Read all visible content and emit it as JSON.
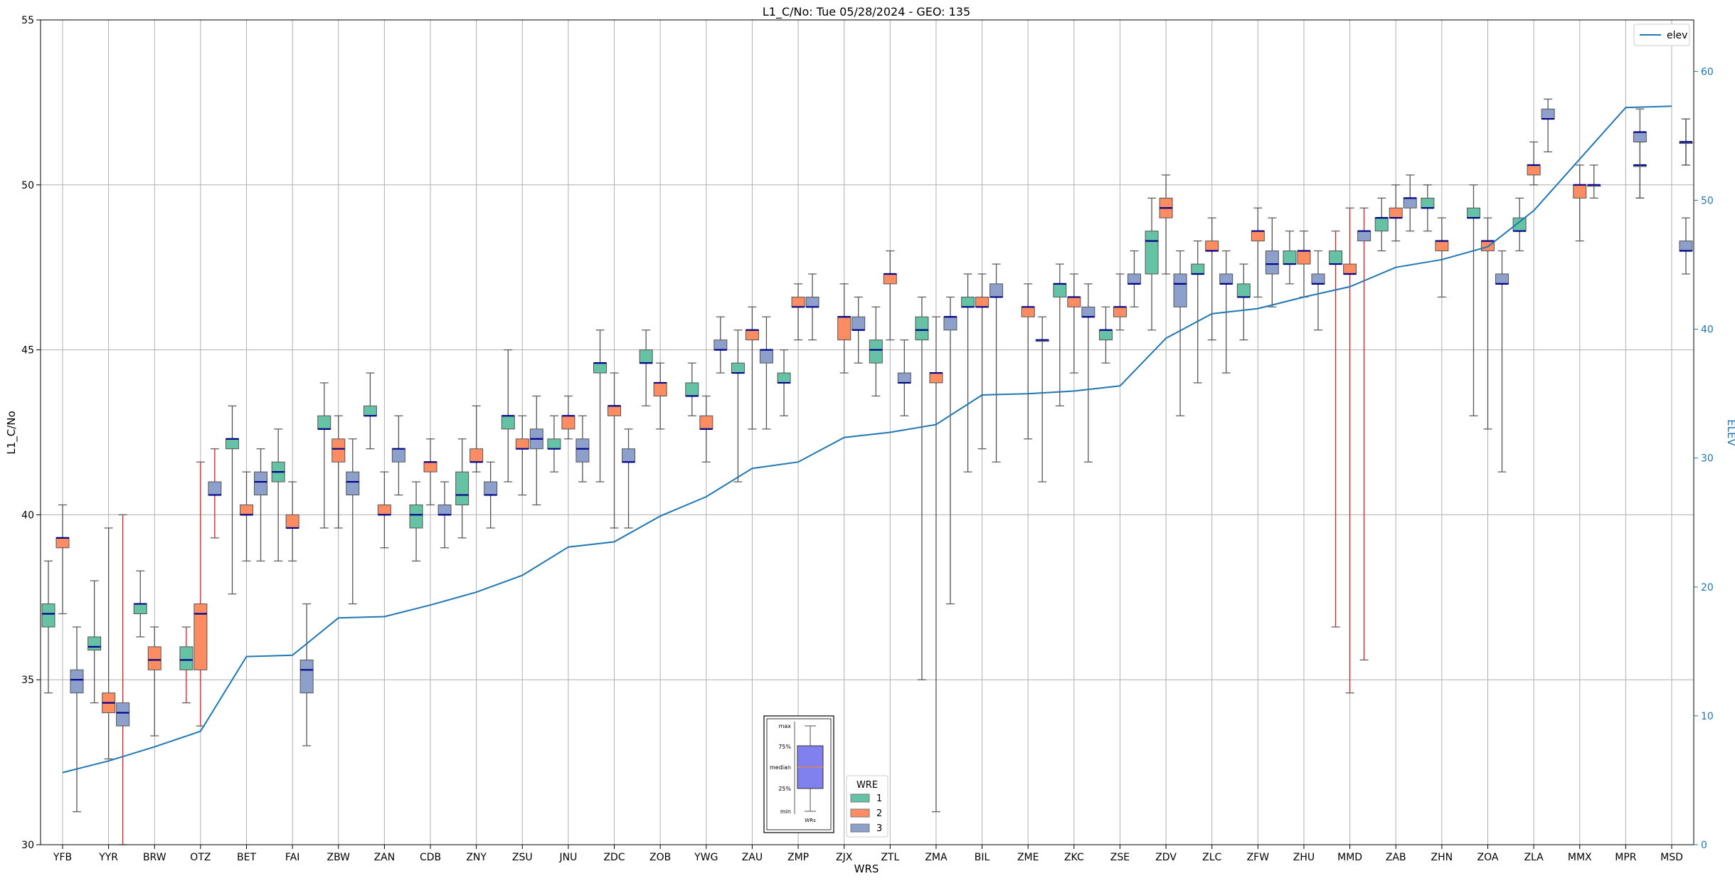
{
  "chart_data": {
    "type": "boxplot",
    "title": "L1_C/No: Tue 05/28/2024 - GEO: 135",
    "xlabel": "WRS",
    "ylabel": "L1_C/No",
    "y2label": "ELEV",
    "ylim": [
      30,
      55
    ],
    "y2lim": [
      0,
      64
    ],
    "yticks": [
      30,
      35,
      40,
      45,
      50,
      55
    ],
    "y2ticks": [
      0,
      10,
      20,
      30,
      40,
      50,
      60
    ],
    "grid": true,
    "categories": [
      "YFB",
      "YYR",
      "BRW",
      "OTZ",
      "BET",
      "FAI",
      "ZBW",
      "ZAN",
      "CDB",
      "ZNY",
      "ZSU",
      "JNU",
      "ZDC",
      "ZOB",
      "YWG",
      "ZAU",
      "ZMP",
      "ZJX",
      "ZTL",
      "ZMA",
      "BIL",
      "ZME",
      "ZKC",
      "ZSE",
      "ZDV",
      "ZLC",
      "ZFW",
      "ZHU",
      "MMD",
      "ZAB",
      "ZHN",
      "ZOA",
      "ZLA",
      "MMX",
      "MPR",
      "MSD"
    ],
    "elev": [
      5.6,
      6.5,
      7.6,
      8.8,
      14.6,
      14.7,
      17.6,
      17.7,
      18.6,
      19.6,
      20.9,
      23.1,
      23.5,
      25.5,
      27.0,
      29.2,
      29.7,
      31.6,
      32.0,
      32.6,
      34.9,
      35.0,
      35.2,
      35.6,
      39.3,
      41.2,
      41.6,
      42.5,
      43.3,
      44.8,
      45.4,
      46.4,
      49.2,
      53.2,
      57.2,
      57.3
    ],
    "elev_legend": "elev",
    "colors": {
      "1": "#66c2a5",
      "2": "#fc8d62",
      "3": "#8da0cb",
      "elev": "#1f77b4",
      "outlier_whisker": "#e41a1c",
      "median": "#00008b"
    },
    "wre_legend": {
      "title": "WRE",
      "labels": [
        "1",
        "2",
        "3"
      ]
    },
    "series": [
      {
        "name": "1",
        "boxes": [
          [
            0,
            34.6,
            36.6,
            37.0,
            37.3,
            38.6,
            false
          ],
          [
            1,
            34.3,
            35.9,
            36.0,
            36.3,
            38.0,
            false
          ],
          [
            2,
            36.3,
            37.0,
            37.3,
            37.3,
            38.3,
            false
          ],
          [
            3,
            34.3,
            35.3,
            35.6,
            36.0,
            36.6,
            true
          ],
          [
            4,
            37.6,
            42.0,
            42.3,
            42.3,
            43.3,
            false
          ],
          [
            5,
            38.6,
            41.0,
            41.3,
            41.6,
            42.6,
            false
          ],
          [
            6,
            39.6,
            42.6,
            42.6,
            43.0,
            44.0,
            false
          ],
          [
            7,
            42.0,
            43.0,
            43.0,
            43.3,
            44.3,
            false
          ],
          [
            8,
            38.6,
            39.6,
            40.0,
            40.3,
            41.0,
            false
          ],
          [
            9,
            39.3,
            40.3,
            40.6,
            41.3,
            42.3,
            false
          ],
          [
            10,
            41.0,
            42.6,
            43.0,
            43.0,
            45.0,
            false
          ],
          [
            11,
            41.3,
            42.0,
            42.0,
            42.3,
            43.0,
            false
          ],
          [
            12,
            41.0,
            44.3,
            44.6,
            44.6,
            45.6,
            false
          ],
          [
            13,
            43.3,
            44.6,
            44.6,
            45.0,
            45.6,
            false
          ],
          [
            14,
            43.0,
            43.6,
            43.6,
            44.0,
            44.6,
            false
          ],
          [
            15,
            41.0,
            44.3,
            44.3,
            44.6,
            45.6,
            false
          ],
          [
            16,
            43.0,
            44.0,
            44.0,
            44.3,
            45.0,
            false
          ],
          [
            18,
            43.6,
            44.6,
            45.0,
            45.3,
            46.3,
            false
          ],
          [
            19,
            35.0,
            45.3,
            45.6,
            46.0,
            46.6,
            false
          ],
          [
            20,
            41.3,
            46.3,
            46.3,
            46.6,
            47.3,
            false
          ],
          [
            22,
            43.3,
            46.6,
            47.0,
            47.0,
            47.6,
            false
          ],
          [
            23,
            44.6,
            45.3,
            45.6,
            45.6,
            46.3,
            false
          ],
          [
            24,
            45.6,
            47.3,
            48.3,
            48.6,
            49.6,
            false
          ],
          [
            25,
            44.0,
            47.3,
            47.3,
            47.6,
            48.3,
            false
          ],
          [
            26,
            45.3,
            46.6,
            46.6,
            47.0,
            47.6,
            false
          ],
          [
            27,
            47.0,
            47.6,
            47.6,
            48.0,
            48.6,
            false
          ],
          [
            28,
            36.6,
            47.6,
            47.6,
            48.0,
            48.6,
            true
          ],
          [
            29,
            48.0,
            48.6,
            49.0,
            49.0,
            49.6,
            false
          ],
          [
            30,
            48.6,
            49.3,
            49.3,
            49.6,
            50.0,
            false
          ],
          [
            31,
            43.0,
            49.0,
            49.0,
            49.3,
            50.0,
            false
          ],
          [
            32,
            48.0,
            48.6,
            48.6,
            49.0,
            49.6,
            false
          ]
        ]
      },
      {
        "name": "2",
        "boxes": [
          [
            0,
            37.0,
            39.0,
            39.3,
            39.3,
            40.3,
            false
          ],
          [
            1,
            32.6,
            34.0,
            34.3,
            34.6,
            39.6,
            false
          ],
          [
            2,
            33.3,
            35.3,
            35.6,
            36.0,
            36.6,
            false
          ],
          [
            3,
            33.6,
            35.3,
            37.0,
            37.3,
            41.6,
            true
          ],
          [
            4,
            38.6,
            40.0,
            40.0,
            40.3,
            41.3,
            false
          ],
          [
            5,
            38.6,
            39.6,
            39.6,
            40.0,
            41.0,
            false
          ],
          [
            6,
            39.6,
            41.6,
            42.0,
            42.3,
            43.0,
            false
          ],
          [
            7,
            39.0,
            40.0,
            40.0,
            40.3,
            41.3,
            false
          ],
          [
            8,
            40.3,
            41.3,
            41.6,
            41.6,
            42.3,
            false
          ],
          [
            9,
            41.3,
            41.6,
            41.6,
            42.0,
            43.3,
            false
          ],
          [
            10,
            40.6,
            42.0,
            42.0,
            42.3,
            43.0,
            false
          ],
          [
            11,
            42.3,
            42.6,
            43.0,
            43.0,
            43.6,
            false
          ],
          [
            12,
            39.6,
            43.0,
            43.3,
            43.3,
            44.3,
            false
          ],
          [
            13,
            42.6,
            43.6,
            44.0,
            44.0,
            44.6,
            false
          ],
          [
            14,
            41.6,
            42.6,
            42.6,
            43.0,
            43.6,
            false
          ],
          [
            15,
            42.6,
            45.3,
            45.6,
            45.6,
            46.3,
            false
          ],
          [
            16,
            45.3,
            46.3,
            46.3,
            46.6,
            47.0,
            false
          ],
          [
            17,
            44.3,
            45.3,
            46.0,
            46.0,
            47.0,
            false
          ],
          [
            18,
            45.3,
            47.0,
            47.3,
            47.3,
            48.0,
            false
          ],
          [
            19,
            31.0,
            44.0,
            44.3,
            44.3,
            46.0,
            false
          ],
          [
            20,
            42.0,
            46.3,
            46.3,
            46.6,
            47.3,
            false
          ],
          [
            21,
            42.3,
            46.0,
            46.3,
            46.3,
            47.0,
            false
          ],
          [
            22,
            44.3,
            46.3,
            46.6,
            46.6,
            47.3,
            false
          ],
          [
            23,
            45.6,
            46.0,
            46.3,
            46.3,
            47.3,
            false
          ],
          [
            24,
            47.3,
            49.0,
            49.3,
            49.6,
            50.3,
            false
          ],
          [
            25,
            45.3,
            48.0,
            48.0,
            48.3,
            49.0,
            false
          ],
          [
            26,
            46.6,
            48.3,
            48.6,
            48.6,
            49.3,
            false
          ],
          [
            27,
            46.6,
            47.6,
            48.0,
            48.0,
            48.6,
            false
          ],
          [
            28,
            34.6,
            47.3,
            47.3,
            47.6,
            49.3,
            true
          ],
          [
            29,
            48.3,
            49.0,
            49.0,
            49.3,
            50.0,
            false
          ],
          [
            30,
            46.6,
            48.0,
            48.3,
            48.3,
            49.0,
            false
          ],
          [
            31,
            42.6,
            48.0,
            48.3,
            48.3,
            49.0,
            false
          ],
          [
            32,
            50.0,
            50.3,
            50.6,
            50.6,
            51.3,
            false
          ],
          [
            33,
            48.3,
            49.6,
            50.0,
            50.0,
            50.6,
            false
          ]
        ]
      },
      {
        "name": "3",
        "boxes": [
          [
            0,
            31.0,
            34.6,
            35.0,
            35.3,
            36.6,
            false
          ],
          [
            1,
            30.0,
            33.6,
            34.0,
            34.3,
            40.0,
            true
          ],
          [
            3,
            39.3,
            40.6,
            40.6,
            41.0,
            42.0,
            true
          ],
          [
            4,
            38.6,
            40.6,
            41.0,
            41.3,
            42.0,
            false
          ],
          [
            5,
            33.0,
            34.6,
            35.3,
            35.6,
            37.3,
            false
          ],
          [
            6,
            37.3,
            40.6,
            41.0,
            41.3,
            42.3,
            false
          ],
          [
            7,
            40.6,
            41.6,
            42.0,
            42.0,
            43.0,
            false
          ],
          [
            8,
            39.0,
            40.0,
            40.0,
            40.3,
            41.0,
            false
          ],
          [
            9,
            39.6,
            40.6,
            40.6,
            41.0,
            41.6,
            false
          ],
          [
            10,
            40.3,
            42.0,
            42.3,
            42.6,
            43.6,
            false
          ],
          [
            11,
            41.0,
            41.6,
            42.0,
            42.3,
            43.0,
            false
          ],
          [
            12,
            39.6,
            41.6,
            41.6,
            42.0,
            42.6,
            false
          ],
          [
            14,
            44.3,
            45.0,
            45.0,
            45.3,
            46.0,
            false
          ],
          [
            15,
            42.6,
            44.6,
            45.0,
            45.0,
            46.0,
            false
          ],
          [
            16,
            45.3,
            46.3,
            46.3,
            46.6,
            47.3,
            false
          ],
          [
            17,
            44.6,
            45.6,
            45.6,
            46.0,
            46.6,
            false
          ],
          [
            18,
            43.0,
            44.0,
            44.0,
            44.3,
            45.3,
            false
          ],
          [
            19,
            37.3,
            45.6,
            46.0,
            46.0,
            46.6,
            false
          ],
          [
            20,
            41.6,
            46.6,
            46.6,
            47.0,
            47.6,
            false
          ],
          [
            21,
            41.0,
            45.3,
            45.3,
            45.3,
            46.0,
            false
          ],
          [
            22,
            41.6,
            46.0,
            46.0,
            46.3,
            47.0,
            false
          ],
          [
            23,
            46.3,
            47.0,
            47.0,
            47.3,
            48.0,
            false
          ],
          [
            24,
            43.0,
            46.3,
            47.0,
            47.3,
            48.0,
            false
          ],
          [
            25,
            44.3,
            47.0,
            47.0,
            47.3,
            48.0,
            false
          ],
          [
            26,
            46.3,
            47.3,
            47.6,
            48.0,
            49.0,
            false
          ],
          [
            27,
            45.6,
            47.0,
            47.0,
            47.3,
            48.0,
            false
          ],
          [
            28,
            35.6,
            48.3,
            48.6,
            48.6,
            49.3,
            true
          ],
          [
            29,
            48.6,
            49.3,
            49.6,
            49.6,
            50.3,
            false
          ],
          [
            31,
            41.3,
            47.0,
            47.0,
            47.3,
            48.0,
            false
          ],
          [
            32,
            51.0,
            52.0,
            52.0,
            52.3,
            52.6,
            false
          ],
          [
            33,
            49.6,
            50.0,
            50.0,
            50.0,
            50.6,
            false
          ],
          [
            34,
            49.6,
            50.6,
            50.6,
            50.6,
            51.3,
            false
          ],
          [
            34,
            49.6,
            51.3,
            51.6,
            51.6,
            52.3,
            false
          ],
          [
            35,
            47.3,
            48.0,
            48.0,
            48.3,
            49.0,
            false
          ],
          [
            35,
            50.6,
            51.3,
            51.3,
            51.3,
            52.0,
            false
          ],
          [
            35,
            50.6,
            51.3,
            51.3,
            51.3,
            52.0,
            false
          ]
        ]
      }
    ],
    "inset_legend": {
      "labels": [
        "max",
        "75%",
        "median",
        "25%",
        "min"
      ],
      "caption": "WRs"
    }
  }
}
